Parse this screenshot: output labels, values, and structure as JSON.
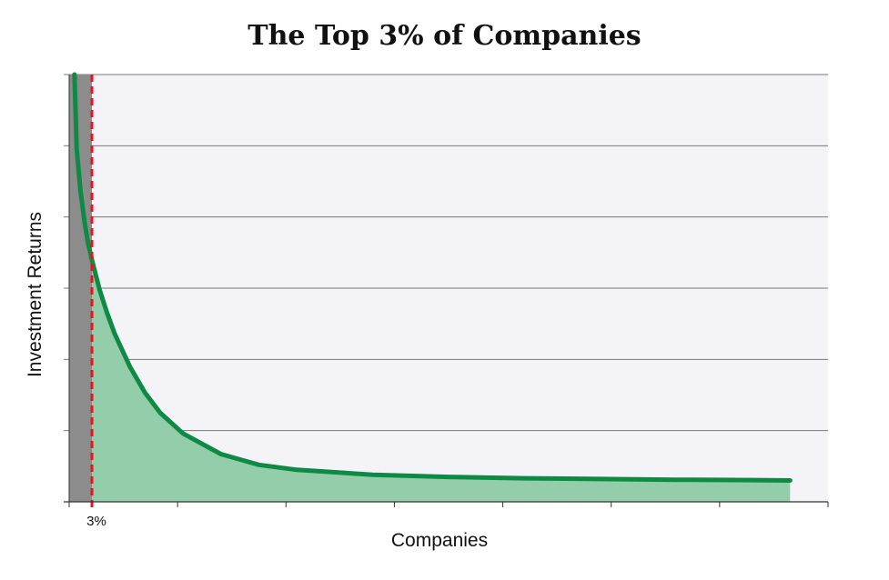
{
  "chart_data": {
    "type": "area",
    "title": "The Top 3% of Companies",
    "xlabel": "Companies",
    "ylabel": "Investment Returns",
    "xlim": [
      0,
      100
    ],
    "ylim": [
      0,
      6
    ],
    "grid": true,
    "x_tick_labels": [
      {
        "x": 3,
        "label": "3%"
      }
    ],
    "highlight": {
      "x_range": [
        0,
        3
      ],
      "label": "3%",
      "color": "#8c8c8c",
      "line_color": "#e8141c"
    },
    "series": [
      {
        "x": [
          0.7,
          1,
          1.5,
          2,
          2.5,
          3,
          4,
          5,
          6,
          8,
          10,
          12,
          15,
          20,
          25,
          30,
          40,
          50,
          60,
          70,
          80,
          90,
          95
        ],
        "y": [
          6.0,
          4.95,
          4.36,
          3.95,
          3.63,
          3.4,
          2.98,
          2.65,
          2.36,
          1.9,
          1.53,
          1.25,
          0.96,
          0.67,
          0.52,
          0.45,
          0.38,
          0.35,
          0.33,
          0.32,
          0.31,
          0.305,
          0.3
        ],
        "color": "#0f8a45",
        "fill": "#93cdaa"
      }
    ],
    "colors": {
      "plot_background": "#f3f3f8",
      "gridline": "#7a7a7a",
      "axis": "#333333"
    }
  }
}
